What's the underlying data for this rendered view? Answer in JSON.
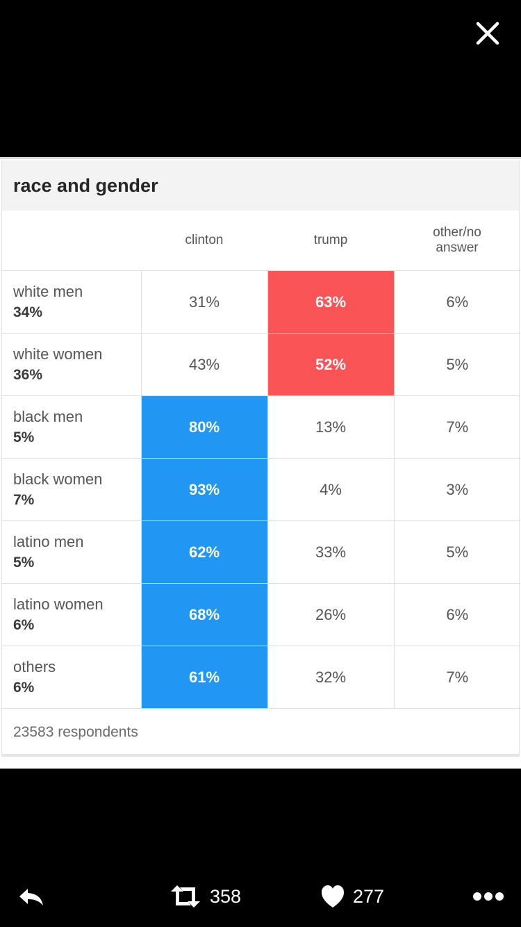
{
  "viewer": {
    "close_icon": "close-icon"
  },
  "card": {
    "title": "race and gender",
    "columns": [
      "",
      "clinton",
      "trump",
      "other/no answer"
    ],
    "rows": [
      {
        "group": "white men",
        "share": "34%",
        "clinton": "31%",
        "trump": "63%",
        "other": "6%",
        "winner": "trump"
      },
      {
        "group": "white women",
        "share": "36%",
        "clinton": "43%",
        "trump": "52%",
        "other": "5%",
        "winner": "trump"
      },
      {
        "group": "black men",
        "share": "5%",
        "clinton": "80%",
        "trump": "13%",
        "other": "7%",
        "winner": "clinton"
      },
      {
        "group": "black women",
        "share": "7%",
        "clinton": "93%",
        "trump": "4%",
        "other": "3%",
        "winner": "clinton"
      },
      {
        "group": "latino men",
        "share": "5%",
        "clinton": "62%",
        "trump": "33%",
        "other": "5%",
        "winner": "clinton"
      },
      {
        "group": "latino women",
        "share": "6%",
        "clinton": "68%",
        "trump": "26%",
        "other": "6%",
        "winner": "clinton"
      },
      {
        "group": "others",
        "share": "6%",
        "clinton": "61%",
        "trump": "32%",
        "other": "7%",
        "winner": "clinton"
      }
    ],
    "footer": "23583 respondents",
    "colors": {
      "clinton": "#2196f3",
      "trump": "#fb5457"
    }
  },
  "actions": {
    "reply_icon": "reply-icon",
    "retweet_icon": "retweet-icon",
    "retweet_count": "358",
    "like_icon": "heart-icon",
    "like_count": "277",
    "more_icon": "more-icon"
  }
}
